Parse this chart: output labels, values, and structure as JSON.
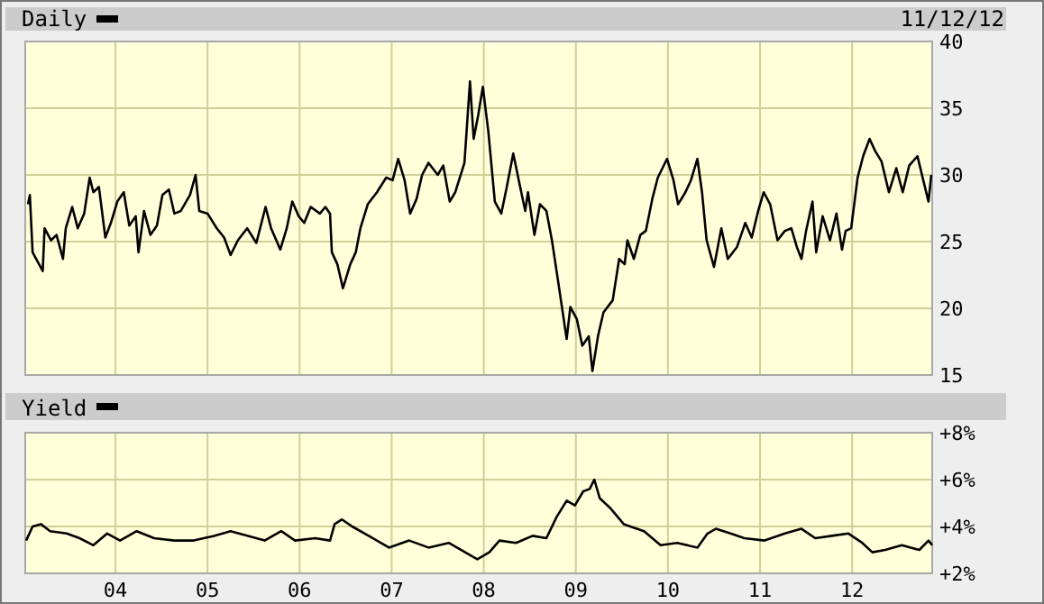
{
  "chart_data": [
    {
      "type": "line",
      "legend": "top left",
      "grid": true,
      "tick_labels": "y",
      "annotations": [
        "11/12/12"
      ],
      "xlim": [
        2003.02,
        2012.87
      ],
      "ylim": [
        15,
        40
      ],
      "yticks": [
        15,
        20,
        25,
        30,
        35,
        40
      ],
      "xticks": [
        {
          "value": 2004,
          "label": null
        },
        {
          "value": 2005,
          "label": null
        },
        {
          "value": 2006,
          "label": null
        },
        {
          "value": 2007,
          "label": null
        },
        {
          "value": 2008,
          "label": null
        },
        {
          "value": 2009,
          "label": null
        },
        {
          "value": 2010,
          "label": null
        },
        {
          "value": 2011,
          "label": null
        },
        {
          "value": 2012,
          "label": null
        }
      ],
      "series": [
        {
          "name": "Daily",
          "color": "#000000",
          "x": [
            2003.05,
            2003.07,
            2003.1,
            2003.17,
            2003.21,
            2003.23,
            2003.3,
            2003.36,
            2003.43,
            2003.46,
            2003.53,
            2003.59,
            2003.66,
            2003.72,
            2003.76,
            2003.82,
            2003.89,
            2003.95,
            2004.02,
            2004.09,
            2004.15,
            2004.22,
            2004.25,
            2004.31,
            2004.38,
            2004.45,
            2004.51,
            2004.58,
            2004.64,
            2004.71,
            2004.81,
            2004.87,
            2004.91,
            2005.0,
            2005.1,
            2005.18,
            2005.25,
            2005.33,
            2005.43,
            2005.53,
            2005.63,
            2005.69,
            2005.79,
            2005.86,
            2005.92,
            2005.99,
            2006.05,
            2006.12,
            2006.22,
            2006.28,
            2006.33,
            2006.35,
            2006.41,
            2006.47,
            2006.55,
            2006.61,
            2006.66,
            2006.74,
            2006.84,
            2006.94,
            2007.01,
            2007.07,
            2007.14,
            2007.2,
            2007.27,
            2007.33,
            2007.4,
            2007.5,
            2007.56,
            2007.63,
            2007.69,
            2007.79,
            2007.85,
            2007.89,
            2007.94,
            2007.99,
            2008.05,
            2008.12,
            2008.19,
            2008.25,
            2008.32,
            2008.38,
            2008.45,
            2008.48,
            2008.55,
            2008.61,
            2008.68,
            2008.74,
            2008.81,
            2008.9,
            2008.94,
            2009.01,
            2009.07,
            2009.14,
            2009.18,
            2009.24,
            2009.3,
            2009.4,
            2009.47,
            2009.53,
            2009.56,
            2009.63,
            2009.7,
            2009.76,
            2009.83,
            2009.89,
            2009.99,
            2010.06,
            2010.11,
            2010.19,
            2010.25,
            2010.32,
            2010.37,
            2010.42,
            2010.5,
            2010.58,
            2010.65,
            2010.75,
            2010.84,
            2010.91,
            2010.98,
            2011.04,
            2011.11,
            2011.19,
            2011.27,
            2011.34,
            2011.4,
            2011.45,
            2011.5,
            2011.57,
            2011.61,
            2011.68,
            2011.76,
            2011.83,
            2011.89,
            2011.93,
            2011.99,
            2012.06,
            2012.12,
            2012.19,
            2012.25,
            2012.32,
            2012.4,
            2012.48,
            2012.55,
            2012.62,
            2012.71,
            2012.78,
            2012.83,
            2012.86
          ],
          "values": [
            27.8,
            28.5,
            24.2,
            23.3,
            22.8,
            26.0,
            25.1,
            25.5,
            23.7,
            26.0,
            27.6,
            26.0,
            27.1,
            29.8,
            28.7,
            29.1,
            25.3,
            26.4,
            28.0,
            28.7,
            26.2,
            26.9,
            24.2,
            27.3,
            25.5,
            26.2,
            28.5,
            28.9,
            27.1,
            27.3,
            28.5,
            30.0,
            27.3,
            27.1,
            26.0,
            25.3,
            24.0,
            25.1,
            26.0,
            24.9,
            27.6,
            26.0,
            24.4,
            26.0,
            28.0,
            26.9,
            26.4,
            27.6,
            27.1,
            27.6,
            27.1,
            24.2,
            23.3,
            21.5,
            23.3,
            24.2,
            26.0,
            27.8,
            28.7,
            29.8,
            29.6,
            31.2,
            29.6,
            27.1,
            28.2,
            30.0,
            30.9,
            30.0,
            30.7,
            28.0,
            28.7,
            30.9,
            37.0,
            32.7,
            34.5,
            36.6,
            33.2,
            28.0,
            27.1,
            29.1,
            31.6,
            29.6,
            27.3,
            28.7,
            25.5,
            27.8,
            27.3,
            25.1,
            21.9,
            17.7,
            20.1,
            19.2,
            17.2,
            17.9,
            15.3,
            17.9,
            19.7,
            20.6,
            23.7,
            23.3,
            25.1,
            23.7,
            25.5,
            25.8,
            28.2,
            29.8,
            31.2,
            29.6,
            27.8,
            28.7,
            29.6,
            31.2,
            28.7,
            25.1,
            23.1,
            26.0,
            23.7,
            24.6,
            26.4,
            25.3,
            27.3,
            28.7,
            27.8,
            25.1,
            25.8,
            26.0,
            24.6,
            23.7,
            25.8,
            28.0,
            24.2,
            26.9,
            25.1,
            27.1,
            24.4,
            25.8,
            26.0,
            29.8,
            31.4,
            32.7,
            31.8,
            31.0,
            28.7,
            30.5,
            28.7,
            30.7,
            31.4,
            29.4,
            28.0,
            30.0
          ]
        }
      ]
    },
    {
      "type": "line",
      "legend": "top left",
      "grid": true,
      "xlim": [
        2003.02,
        2012.87
      ],
      "ylim": [
        2,
        8
      ],
      "yticks": [
        {
          "value": 2,
          "label": "+2%"
        },
        {
          "value": 4,
          "label": "+4%"
        },
        {
          "value": 6,
          "label": "+6%"
        },
        {
          "value": 8,
          "label": "+8%"
        }
      ],
      "xticks": [
        {
          "value": 2004,
          "label": "04"
        },
        {
          "value": 2005,
          "label": "05"
        },
        {
          "value": 2006,
          "label": "06"
        },
        {
          "value": 2007,
          "label": "07"
        },
        {
          "value": 2008,
          "label": "08"
        },
        {
          "value": 2009,
          "label": "09"
        },
        {
          "value": 2010,
          "label": "10"
        },
        {
          "value": 2011,
          "label": "11"
        },
        {
          "value": 2012,
          "label": "12"
        }
      ],
      "series": [
        {
          "name": "Yield",
          "color": "#000000",
          "x": [
            2003.03,
            2003.1,
            2003.19,
            2003.29,
            2003.47,
            2003.61,
            2003.76,
            2003.91,
            2004.05,
            2004.23,
            2004.42,
            2004.64,
            2004.85,
            2005.07,
            2005.25,
            2005.44,
            2005.62,
            2005.8,
            2005.95,
            2006.17,
            2006.33,
            2006.38,
            2006.46,
            2006.57,
            2006.75,
            2006.97,
            2007.19,
            2007.4,
            2007.62,
            2007.84,
            2007.93,
            2008.06,
            2008.17,
            2008.35,
            2008.53,
            2008.68,
            2008.79,
            2008.9,
            2008.99,
            2009.08,
            2009.15,
            2009.2,
            2009.26,
            2009.37,
            2009.52,
            2009.74,
            2009.92,
            2010.1,
            2010.32,
            2010.43,
            2010.52,
            2010.68,
            2010.83,
            2011.05,
            2011.27,
            2011.45,
            2011.6,
            2011.78,
            2011.96,
            2012.11,
            2012.22,
            2012.36,
            2012.54,
            2012.73,
            2012.83,
            2012.87
          ],
          "values": [
            3.4,
            4.0,
            4.1,
            3.8,
            3.7,
            3.5,
            3.2,
            3.7,
            3.4,
            3.8,
            3.5,
            3.4,
            3.4,
            3.6,
            3.8,
            3.6,
            3.4,
            3.8,
            3.4,
            3.5,
            3.4,
            4.1,
            4.3,
            4.0,
            3.6,
            3.1,
            3.4,
            3.1,
            3.3,
            2.8,
            2.6,
            2.9,
            3.4,
            3.3,
            3.6,
            3.5,
            4.4,
            5.1,
            4.9,
            5.5,
            5.6,
            6.0,
            5.2,
            4.8,
            4.1,
            3.8,
            3.2,
            3.3,
            3.1,
            3.7,
            3.9,
            3.7,
            3.5,
            3.4,
            3.7,
            3.9,
            3.5,
            3.6,
            3.7,
            3.3,
            2.9,
            3.0,
            3.2,
            3.0,
            3.4,
            3.2
          ]
        }
      ]
    }
  ]
}
